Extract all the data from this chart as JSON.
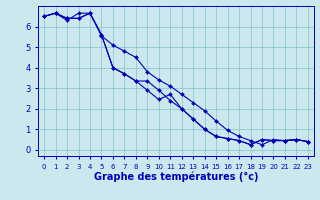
{
  "title": "Graphe des températures (°c)",
  "bg_color": "#cce8ee",
  "line_color": "#0000bb",
  "grid_color": "#88cccc",
  "xlim": [
    -0.5,
    23.5
  ],
  "ylim": [
    -0.3,
    7.0
  ],
  "xticks": [
    0,
    1,
    2,
    3,
    4,
    5,
    6,
    7,
    8,
    9,
    10,
    11,
    12,
    13,
    14,
    15,
    16,
    17,
    18,
    19,
    20,
    21,
    22,
    23
  ],
  "yticks": [
    0,
    1,
    2,
    3,
    4,
    5,
    6
  ],
  "series": [
    [
      6.5,
      6.65,
      6.4,
      6.4,
      6.65,
      5.6,
      4.0,
      3.7,
      3.35,
      2.9,
      2.45,
      2.7,
      2.0,
      1.5,
      1.0,
      0.65,
      0.55,
      0.45,
      0.25,
      0.5,
      0.45,
      0.45,
      0.5,
      0.4
    ],
    [
      6.5,
      6.65,
      6.4,
      6.4,
      6.65,
      5.6,
      4.0,
      3.7,
      3.35,
      3.35,
      2.9,
      2.4,
      2.0,
      1.5,
      1.0,
      0.65,
      0.55,
      0.45,
      0.25,
      0.5,
      0.45,
      0.45,
      0.5,
      0.4
    ],
    [
      6.5,
      6.65,
      6.3,
      6.65,
      6.65,
      5.55,
      5.1,
      4.8,
      4.5,
      3.8,
      3.4,
      3.1,
      2.7,
      2.3,
      1.9,
      1.4,
      0.95,
      0.65,
      0.45,
      0.25,
      0.5,
      0.45,
      0.5,
      0.4
    ]
  ],
  "xlabel_fontsize": 7,
  "tick_fontsize_x": 5,
  "tick_fontsize_y": 6
}
